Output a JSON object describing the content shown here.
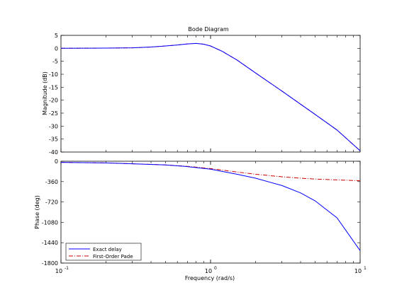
{
  "chart_data": [
    {
      "type": "line",
      "title": "Bode Diagram",
      "ylabel": "Magnitude (dB)",
      "xlabel": "",
      "xscale": "log",
      "xlim": [
        0.1,
        10
      ],
      "ylim": [
        -40,
        5
      ],
      "yticks": [
        5,
        0,
        -5,
        -10,
        -15,
        -20,
        -25,
        -30,
        -35,
        -40
      ],
      "grid": false,
      "series": [
        {
          "name": "Exact delay",
          "color": "#0000ff",
          "style": "solid",
          "x": [
            0.1,
            0.2,
            0.3,
            0.4,
            0.5,
            0.6,
            0.7,
            0.8,
            0.9,
            1.0,
            1.2,
            1.5,
            2,
            3,
            5,
            7,
            10
          ],
          "y": [
            0,
            0.1,
            0.2,
            0.5,
            0.9,
            1.3,
            1.7,
            1.9,
            1.6,
            0.9,
            -1.2,
            -4.5,
            -9.5,
            -16.5,
            -25.5,
            -31.5,
            -39.5
          ]
        },
        {
          "name": "First-Order Pade",
          "color": "#cc0000",
          "style": "dashdot",
          "x": [
            0.1,
            0.2,
            0.3,
            0.4,
            0.5,
            0.6,
            0.7,
            0.8,
            0.9,
            1.0,
            1.2,
            1.5,
            2,
            3,
            5,
            7,
            10
          ],
          "y": [
            0,
            0.1,
            0.2,
            0.5,
            0.9,
            1.3,
            1.7,
            1.9,
            1.6,
            0.9,
            -1.2,
            -4.5,
            -9.5,
            -16.5,
            -25.5,
            -31.5,
            -39.5
          ]
        }
      ]
    },
    {
      "type": "line",
      "title": "",
      "ylabel": "Phase (deg)",
      "xlabel": "Frequency  (rad/s)",
      "xscale": "log",
      "xlim": [
        0.1,
        10
      ],
      "ylim": [
        -1800,
        0
      ],
      "yticks": [
        0,
        -360,
        -720,
        -1080,
        -1440,
        -1800
      ],
      "xticks_labels": [
        "10",
        "10",
        "10"
      ],
      "xticks_exponents": [
        "-1",
        "0",
        "1"
      ],
      "grid": false,
      "legend_position": "bottom-left",
      "series": [
        {
          "name": "Exact delay",
          "color": "#0000ff",
          "style": "solid",
          "x": [
            0.1,
            0.2,
            0.3,
            0.5,
            0.7,
            1.0,
            1.5,
            2,
            3,
            4,
            5,
            7,
            10
          ],
          "y": [
            -20,
            -30,
            -45,
            -65,
            -95,
            -140,
            -230,
            -300,
            -430,
            -560,
            -700,
            -1000,
            -1580
          ]
        },
        {
          "name": "First-Order Pade",
          "color": "#cc0000",
          "style": "dashdot",
          "x": [
            0.1,
            0.2,
            0.3,
            0.5,
            0.7,
            1.0,
            1.5,
            2,
            3,
            4,
            5,
            7,
            10
          ],
          "y": [
            -20,
            -30,
            -45,
            -65,
            -90,
            -130,
            -190,
            -230,
            -275,
            -300,
            -315,
            -330,
            -345
          ]
        }
      ]
    }
  ]
}
